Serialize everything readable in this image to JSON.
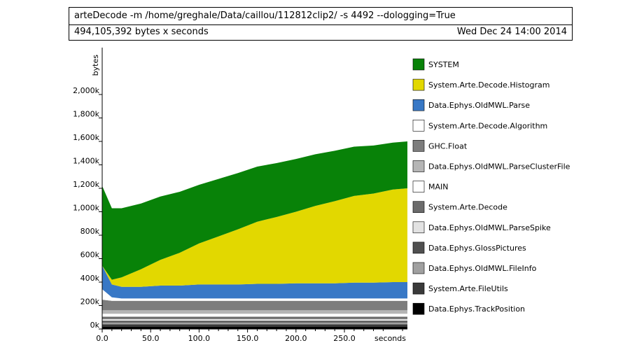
{
  "header": {
    "command": "arteDecode -m /home/greghale/Data/caillou/112812clip2/ -s 4492 --dologging=True",
    "total": "494,105,392 bytes x seconds",
    "date": "Wed Dec 24 14:00 2014"
  },
  "chart_data": {
    "type": "area",
    "xlabel": "seconds",
    "ylabel": "bytes",
    "xlim": [
      0,
      315
    ],
    "ylim": [
      0,
      2400000
    ],
    "x_ticks": [
      "0.0",
      "50.0",
      "100.0",
      "150.0",
      "200.0",
      "250.0"
    ],
    "y_ticks": [
      "0k",
      "200k",
      "400k",
      "600k",
      "800k",
      "1,000k",
      "1,200k",
      "1,400k",
      "1,600k",
      "1,800k",
      "2,000k"
    ],
    "grid": false,
    "legend_position": "right",
    "x": [
      0,
      10,
      20,
      40,
      60,
      80,
      100,
      120,
      140,
      160,
      180,
      200,
      220,
      240,
      260,
      280,
      300,
      315
    ],
    "series": [
      {
        "name": "Data.Ephys.TrackPosition",
        "color": "#000000",
        "values": [
          20000,
          20000,
          20000,
          20000,
          20000,
          20000,
          20000,
          20000,
          20000,
          20000,
          20000,
          20000,
          20000,
          20000,
          20000,
          20000,
          20000,
          20000
        ]
      },
      {
        "name": "System.Arte.FileUtils",
        "color": "#3a3a3a",
        "values": [
          20000,
          20000,
          20000,
          20000,
          20000,
          20000,
          20000,
          20000,
          20000,
          20000,
          20000,
          20000,
          20000,
          20000,
          20000,
          20000,
          20000,
          20000
        ]
      },
      {
        "name": "Data.Ephys.OldMWL.FileInfo",
        "color": "#a0a0a0",
        "values": [
          15000,
          15000,
          15000,
          15000,
          15000,
          15000,
          15000,
          15000,
          15000,
          15000,
          15000,
          15000,
          15000,
          15000,
          15000,
          15000,
          15000,
          15000
        ]
      },
      {
        "name": "Data.Ephys.GlossPictures",
        "color": "#505050",
        "values": [
          15000,
          15000,
          15000,
          15000,
          15000,
          15000,
          15000,
          15000,
          15000,
          15000,
          15000,
          15000,
          15000,
          15000,
          15000,
          15000,
          15000,
          15000
        ]
      },
      {
        "name": "Data.Ephys.OldMWL.ParseSpike",
        "color": "#e2e2e2",
        "values": [
          15000,
          15000,
          15000,
          15000,
          15000,
          15000,
          15000,
          15000,
          15000,
          15000,
          15000,
          15000,
          15000,
          15000,
          15000,
          15000,
          15000,
          15000
        ]
      },
      {
        "name": "System.Arte.Decode",
        "color": "#6b6b6b",
        "values": [
          20000,
          20000,
          20000,
          20000,
          20000,
          20000,
          20000,
          20000,
          20000,
          20000,
          20000,
          20000,
          20000,
          20000,
          20000,
          20000,
          20000,
          20000
        ]
      },
      {
        "name": "MAIN",
        "color": "#ffffff",
        "values": [
          25000,
          25000,
          25000,
          25000,
          25000,
          25000,
          25000,
          25000,
          25000,
          25000,
          25000,
          25000,
          25000,
          25000,
          25000,
          25000,
          25000,
          25000
        ]
      },
      {
        "name": "Data.Ephys.OldMWL.ParseClusterFile",
        "color": "#b5b5b5",
        "values": [
          30000,
          30000,
          30000,
          30000,
          30000,
          30000,
          30000,
          30000,
          30000,
          30000,
          30000,
          30000,
          30000,
          30000,
          30000,
          30000,
          30000,
          30000
        ]
      },
      {
        "name": "GHC.Float",
        "color": "#7d7d7d",
        "values": [
          90000,
          80000,
          80000,
          80000,
          80000,
          80000,
          80000,
          80000,
          80000,
          80000,
          80000,
          80000,
          80000,
          80000,
          80000,
          80000,
          80000,
          80000
        ]
      },
      {
        "name": "System.Arte.Decode.Algorithm",
        "color": "#ffffff",
        "values": [
          90000,
          30000,
          20000,
          20000,
          20000,
          20000,
          20000,
          20000,
          20000,
          20000,
          20000,
          20000,
          20000,
          20000,
          20000,
          20000,
          20000,
          20000
        ]
      },
      {
        "name": "Data.Ephys.OldMWL.Parse",
        "color": "#3878c6",
        "values": [
          200000,
          110000,
          100000,
          100000,
          110000,
          110000,
          120000,
          120000,
          120000,
          125000,
          125000,
          130000,
          130000,
          130000,
          135000,
          135000,
          140000,
          140000
        ]
      },
      {
        "name": "System.Arte.Decode.Histogram",
        "color": "#e2d800",
        "values": [
          0,
          40000,
          80000,
          150000,
          220000,
          280000,
          350000,
          410000,
          470000,
          530000,
          570000,
          610000,
          660000,
          700000,
          740000,
          760000,
          790000,
          800000
        ]
      },
      {
        "name": "SYSTEM",
        "color": "#088208",
        "values": [
          680000,
          610000,
          590000,
          560000,
          540000,
          520000,
          500000,
          490000,
          480000,
          470000,
          460000,
          450000,
          440000,
          430000,
          420000,
          410000,
          400000,
          400000
        ]
      }
    ]
  }
}
